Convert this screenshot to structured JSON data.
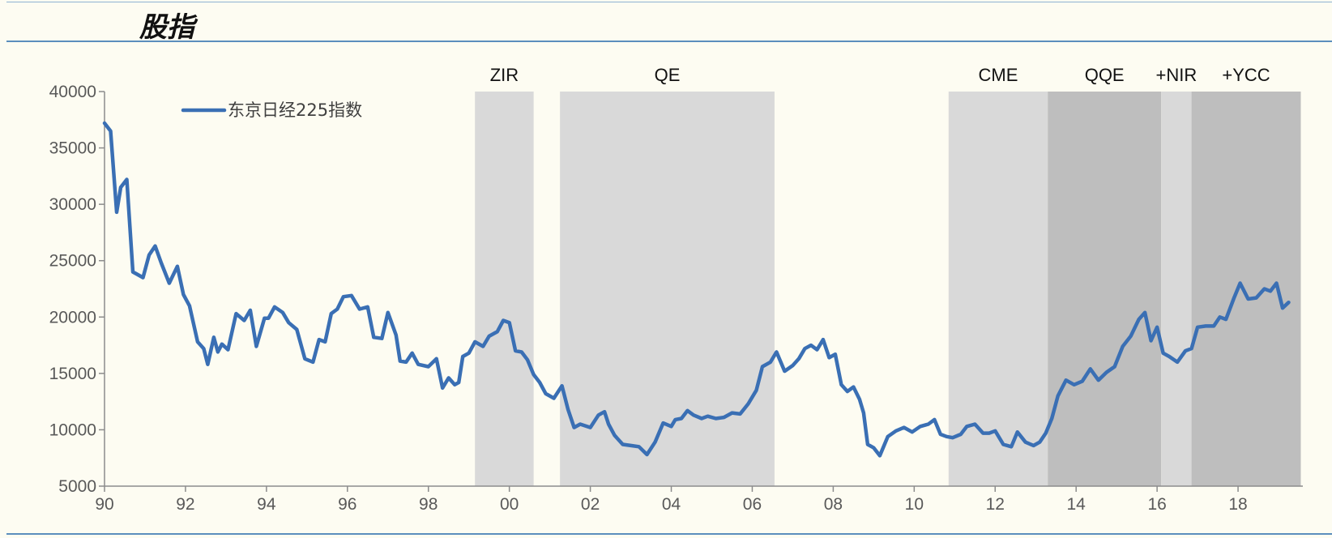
{
  "header": {
    "title": "股指"
  },
  "chart_data": {
    "type": "line",
    "title": "股指",
    "xlabel": "",
    "ylabel": "",
    "xlim": [
      1990,
      2019.6
    ],
    "ylim": [
      5000,
      40000
    ],
    "y_ticks": [
      5000,
      10000,
      15000,
      20000,
      25000,
      30000,
      35000,
      40000
    ],
    "x_ticks": [
      {
        "value": 1990,
        "label": "90"
      },
      {
        "value": 1992,
        "label": "92"
      },
      {
        "value": 1994,
        "label": "94"
      },
      {
        "value": 1996,
        "label": "96"
      },
      {
        "value": 1998,
        "label": "98"
      },
      {
        "value": 2000,
        "label": "00"
      },
      {
        "value": 2002,
        "label": "02"
      },
      {
        "value": 2004,
        "label": "04"
      },
      {
        "value": 2006,
        "label": "06"
      },
      {
        "value": 2008,
        "label": "08"
      },
      {
        "value": 2010,
        "label": "10"
      },
      {
        "value": 2012,
        "label": "12"
      },
      {
        "value": 2014,
        "label": "14"
      },
      {
        "value": 2016,
        "label": "16"
      },
      {
        "value": 2018,
        "label": "18"
      }
    ],
    "legend": {
      "position": "top-left",
      "entries": [
        "东京日经225指数"
      ]
    },
    "shaded_periods": [
      {
        "label": "ZIR",
        "start": 1999.15,
        "end": 2000.6,
        "shade": "light"
      },
      {
        "label": "QE",
        "start": 2001.25,
        "end": 2006.55,
        "shade": "light"
      },
      {
        "label": "CME",
        "start": 2010.85,
        "end": 2013.3,
        "shade": "light"
      },
      {
        "label": "QQE",
        "start": 2013.3,
        "end": 2016.1,
        "shade": "dark"
      },
      {
        "label": "+NIR",
        "start": 2016.1,
        "end": 2016.85,
        "shade": "light"
      },
      {
        "label": "+YCC",
        "start": 2016.85,
        "end": 2019.55,
        "shade": "dark"
      }
    ],
    "series": [
      {
        "name": "东京日经225指数",
        "color": "#3a6fb4",
        "x": [
          1990.0,
          1990.15,
          1990.3,
          1990.4,
          1990.55,
          1990.7,
          1990.8,
          1990.95,
          1991.1,
          1991.25,
          1991.4,
          1991.6,
          1991.8,
          1991.95,
          1992.1,
          1992.3,
          1992.45,
          1992.55,
          1992.7,
          1992.8,
          1992.9,
          1993.05,
          1993.25,
          1993.45,
          1993.6,
          1993.75,
          1993.95,
          1994.05,
          1994.2,
          1994.4,
          1994.55,
          1994.75,
          1994.95,
          1995.15,
          1995.3,
          1995.45,
          1995.6,
          1995.75,
          1995.9,
          1996.1,
          1996.3,
          1996.5,
          1996.65,
          1996.85,
          1997.0,
          1997.2,
          1997.3,
          1997.45,
          1997.6,
          1997.75,
          1998.0,
          1998.2,
          1998.35,
          1998.5,
          1998.65,
          1998.75,
          1998.85,
          1999.0,
          1999.15,
          1999.35,
          1999.5,
          1999.7,
          1999.85,
          2000.0,
          2000.15,
          2000.3,
          2000.45,
          2000.6,
          2000.75,
          2000.9,
          2001.1,
          2001.3,
          2001.45,
          2001.6,
          2001.75,
          2002.0,
          2002.2,
          2002.35,
          2002.45,
          2002.6,
          2002.8,
          2003.0,
          2003.2,
          2003.4,
          2003.6,
          2003.8,
          2004.0,
          2004.1,
          2004.25,
          2004.4,
          2004.55,
          2004.75,
          2004.9,
          2005.1,
          2005.3,
          2005.5,
          2005.7,
          2005.9,
          2006.1,
          2006.25,
          2006.45,
          2006.6,
          2006.8,
          2007.0,
          2007.15,
          2007.3,
          2007.45,
          2007.6,
          2007.75,
          2007.9,
          2008.05,
          2008.2,
          2008.35,
          2008.5,
          2008.65,
          2008.75,
          2008.85,
          2009.0,
          2009.15,
          2009.35,
          2009.55,
          2009.75,
          2009.95,
          2010.15,
          2010.35,
          2010.5,
          2010.65,
          2010.8,
          2010.95,
          2011.15,
          2011.3,
          2011.5,
          2011.7,
          2011.85,
          2012.0,
          2012.2,
          2012.4,
          2012.55,
          2012.75,
          2012.95,
          2013.1,
          2013.25,
          2013.4,
          2013.55,
          2013.75,
          2013.95,
          2014.15,
          2014.35,
          2014.55,
          2014.75,
          2014.95,
          2015.15,
          2015.35,
          2015.55,
          2015.7,
          2015.85,
          2016.0,
          2016.15,
          2016.3,
          2016.5,
          2016.7,
          2016.85,
          2017.0,
          2017.2,
          2017.4,
          2017.55,
          2017.7,
          2017.9,
          2018.05,
          2018.25,
          2018.45,
          2018.65,
          2018.8,
          2018.95,
          2019.1,
          2019.25
        ],
        "values": [
          37200,
          36500,
          29300,
          31500,
          32200,
          24000,
          23800,
          23500,
          25500,
          26300,
          24800,
          23000,
          24500,
          22000,
          21000,
          17800,
          17200,
          15800,
          18200,
          16900,
          17600,
          17100,
          20300,
          19700,
          20600,
          17400,
          19900,
          19900,
          20900,
          20400,
          19500,
          18900,
          16300,
          16000,
          18000,
          17800,
          20300,
          20700,
          21800,
          21900,
          20700,
          20900,
          18200,
          18100,
          20400,
          18400,
          16100,
          16000,
          16800,
          15800,
          15600,
          16300,
          13700,
          14600,
          14000,
          14200,
          16500,
          16800,
          17800,
          17400,
          18300,
          18700,
          19700,
          19500,
          17000,
          16900,
          16200,
          14900,
          14200,
          13200,
          12800,
          13900,
          11800,
          10200,
          10500,
          10200,
          11300,
          11600,
          10500,
          9500,
          8700,
          8600,
          8500,
          7800,
          8900,
          10600,
          10300,
          10900,
          11000,
          11700,
          11300,
          11000,
          11200,
          11000,
          11100,
          11500,
          11400,
          12300,
          13500,
          15600,
          16000,
          16900,
          15200,
          15700,
          16300,
          17200,
          17500,
          17100,
          18000,
          16400,
          16700,
          14000,
          13400,
          13800,
          12700,
          11500,
          8700,
          8400,
          7700,
          9400,
          9900,
          10200,
          9800,
          10300,
          10500,
          10900,
          9600,
          9400,
          9300,
          9600,
          10300,
          10500,
          9700,
          9700,
          9900,
          8700,
          8500,
          9800,
          8900,
          8600,
          8900,
          9700,
          11000,
          13000,
          14400,
          14000,
          14300,
          15400,
          14400,
          15100,
          15600,
          17400,
          18300,
          19800,
          20400,
          17900,
          19100,
          16800,
          16500,
          16000,
          17000,
          17200,
          19100,
          19200,
          19200,
          20000,
          19800,
          21700,
          23000,
          21600,
          21700,
          22500,
          22300,
          23000,
          20800,
          21300
        ]
      }
    ]
  }
}
